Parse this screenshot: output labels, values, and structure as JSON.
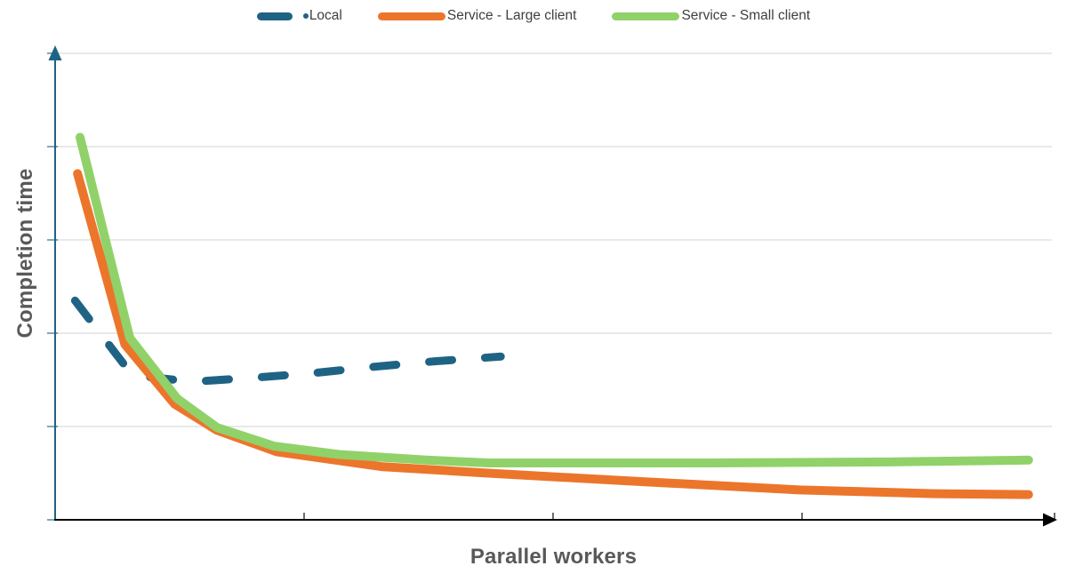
{
  "chart_data": {
    "type": "line",
    "title": "",
    "xlabel": "Parallel workers",
    "ylabel": "Completion time",
    "xlim": [
      0,
      4
    ],
    "ylim": [
      0,
      5
    ],
    "x_tick_positions": [
      1,
      2,
      3
    ],
    "x_tick_labels": [
      "",
      "",
      ""
    ],
    "y_gridline_positions": [
      1,
      2,
      3,
      4,
      5
    ],
    "y_tick_labels": [],
    "grid": "horizontal-only",
    "legend_position": "top-center",
    "axis_note": "both axes end in arrowheads; ticks are unlabeled, values in relative units (1 y-unit = one gridline spacing, 1 x-unit = one x tick spacing)",
    "colors": {
      "y_axis": "#1F6384",
      "x_axis": "#000000",
      "gridline": "#E2E2E2",
      "axis_title_text": "#595959",
      "legend_text": "#3F3F3F",
      "background": "#FFFFFF"
    },
    "series": [
      {
        "name": "Local",
        "color": "#1F6384",
        "style": "dashed",
        "points": [
          [
            0.08,
            2.35
          ],
          [
            0.31,
            1.55
          ],
          [
            0.55,
            1.48
          ],
          [
            0.78,
            1.52
          ],
          [
            1.03,
            1.57
          ],
          [
            1.28,
            1.64
          ],
          [
            1.53,
            1.7
          ],
          [
            1.79,
            1.75
          ]
        ]
      },
      {
        "name": "Service - Large client",
        "color": "#EC752C",
        "style": "solid",
        "points": [
          [
            0.09,
            3.71
          ],
          [
            0.28,
            1.88
          ],
          [
            0.48,
            1.24
          ],
          [
            0.65,
            0.96
          ],
          [
            0.89,
            0.73
          ],
          [
            1.31,
            0.57
          ],
          [
            1.74,
            0.5
          ],
          [
            2.28,
            0.42
          ],
          [
            2.99,
            0.32
          ],
          [
            3.53,
            0.28
          ],
          [
            3.91,
            0.27
          ]
        ]
      },
      {
        "name": "Service - Small client",
        "color": "#90D269",
        "style": "solid",
        "points": [
          [
            0.1,
            4.1
          ],
          [
            0.3,
            1.95
          ],
          [
            0.49,
            1.3
          ],
          [
            0.65,
            0.99
          ],
          [
            0.88,
            0.79
          ],
          [
            1.14,
            0.7
          ],
          [
            1.49,
            0.64
          ],
          [
            1.74,
            0.61
          ],
          [
            2.64,
            0.61
          ],
          [
            3.35,
            0.62
          ],
          [
            3.91,
            0.64
          ]
        ]
      }
    ]
  }
}
